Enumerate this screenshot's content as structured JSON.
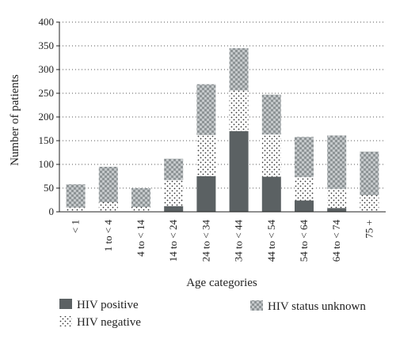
{
  "chart_data": {
    "type": "bar",
    "stacked": true,
    "categories": [
      "< 1",
      "1 to < 4",
      "4 to < 14",
      "14 to < 24",
      "24 to < 34",
      "34 to < 44",
      "44 to < 54",
      "54 to < 64",
      "64 to < 74",
      "75 +"
    ],
    "series": [
      {
        "name": "HIV positive",
        "values": [
          0,
          0,
          0,
          12,
          75,
          170,
          74,
          24,
          8,
          0
        ],
        "color": "#5b6163",
        "pattern": "solid"
      },
      {
        "name": "HIV negative",
        "values": [
          9,
          20,
          10,
          55,
          87,
          86,
          89,
          49,
          40,
          35
        ],
        "color": "#444444",
        "pattern": "dots"
      },
      {
        "name": "HIV status unknown",
        "values": [
          49,
          75,
          40,
          45,
          107,
          89,
          84,
          85,
          113,
          92
        ],
        "color": "#9a9fa1",
        "pattern": "checker"
      }
    ],
    "xlabel": "Age categories",
    "ylabel": "Number of patients",
    "ylim": [
      0,
      400
    ],
    "yticks": [
      0,
      50,
      100,
      150,
      200,
      250,
      300,
      350,
      400
    ],
    "grid": "horizontal dotted",
    "legend": "bottom"
  }
}
